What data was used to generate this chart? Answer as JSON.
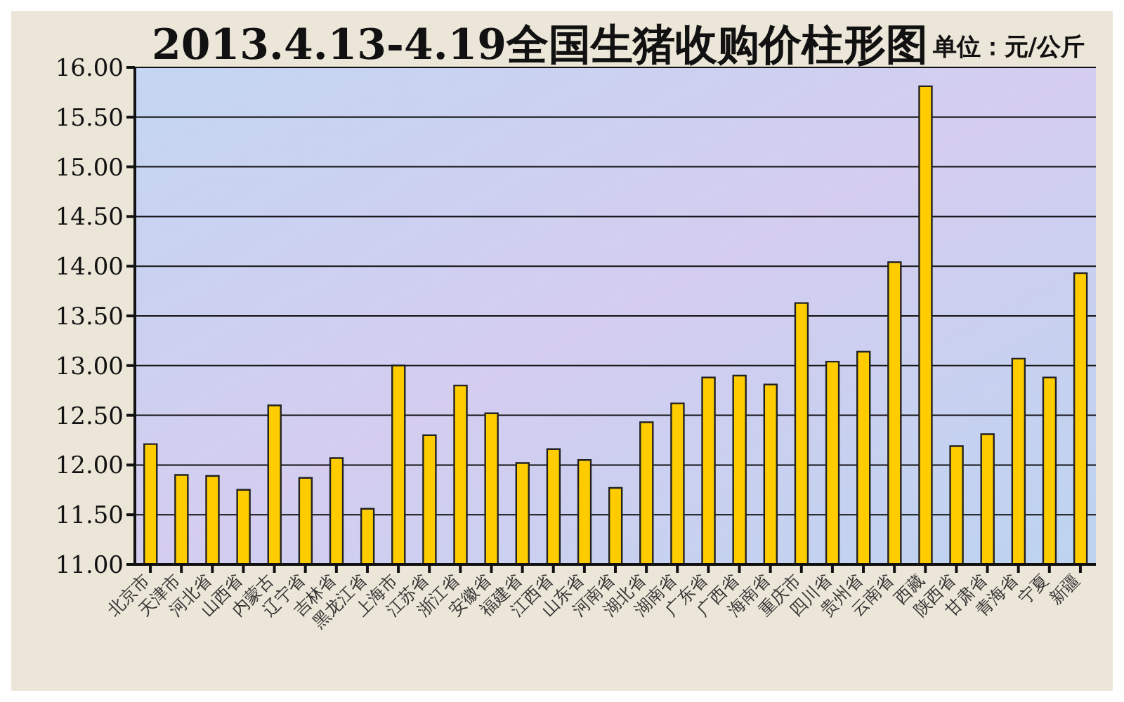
{
  "chart_data": {
    "type": "bar",
    "title": "2013.4.13-4.19全国生猪收购价柱形图",
    "subtitle": "单位：元/公斤",
    "categories": [
      "北京市",
      "天津市",
      "河北省",
      "山西省",
      "内蒙古",
      "辽宁省",
      "吉林省",
      "黑龙江省",
      "上海市",
      "江苏省",
      "浙江省",
      "安徽省",
      "福建省",
      "江西省",
      "山东省",
      "河南省",
      "湖北省",
      "湖南省",
      "广东省",
      "广西省",
      "海南省",
      "重庆市",
      "四川省",
      "贵州省",
      "云南省",
      "西藏",
      "陕西省",
      "甘肃省",
      "青海省",
      "宁夏",
      "新疆"
    ],
    "values": [
      12.21,
      11.9,
      11.89,
      11.75,
      12.6,
      11.87,
      12.07,
      11.56,
      13.0,
      12.3,
      12.8,
      12.52,
      12.02,
      12.16,
      12.05,
      11.77,
      12.43,
      12.62,
      12.88,
      12.9,
      12.81,
      13.63,
      13.04,
      13.14,
      14.04,
      15.81,
      12.19,
      12.31,
      13.07,
      12.88,
      13.93
    ],
    "color": "#ffcc00",
    "ylim": [
      11,
      16
    ],
    "yticks": [
      {
        "value": 11,
        "label": "11.00"
      },
      {
        "value": 11.5,
        "label": "11.50"
      },
      {
        "value": 12,
        "label": "12.00"
      },
      {
        "value": 12.5,
        "label": "12.50"
      },
      {
        "value": 13,
        "label": "13.00"
      },
      {
        "value": 13.5,
        "label": "13.50"
      },
      {
        "value": 14,
        "label": "14.00"
      },
      {
        "value": 14.5,
        "label": "14.50"
      },
      {
        "value": 15,
        "label": "15.00"
      },
      {
        "value": 15.5,
        "label": "15.50"
      },
      {
        "value": 16,
        "label": "16.00"
      }
    ],
    "grid": "y",
    "legend": false
  }
}
